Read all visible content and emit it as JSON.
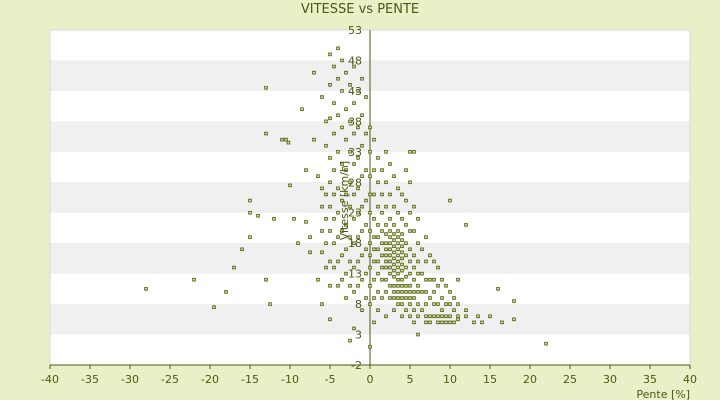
{
  "chart_data": {
    "type": "scatter",
    "title": "VITESSE vs PENTE",
    "xlabel": "Pente [%]",
    "ylabel": "Vitesse [km/h]",
    "xlim": [
      -40,
      40
    ],
    "ylim": [
      -2,
      53
    ],
    "x_ticks": [
      "-40",
      "-35",
      "-30",
      "-25",
      "-20",
      "-15",
      "-10",
      "-5",
      "0",
      "5",
      "10",
      "15",
      "20",
      "25",
      "30",
      "35",
      "40"
    ],
    "y_tick_labels": [
      "53",
      "48",
      "43",
      "38",
      "33",
      "28",
      "23",
      "18",
      "13",
      "8",
      "3",
      "-2"
    ],
    "y_tick_values": [
      53,
      48,
      43,
      38,
      33,
      28,
      23,
      18,
      13,
      8,
      3,
      -2
    ],
    "grid": "alternating horizontal bands",
    "points": [
      [
        -28,
        10.5
      ],
      [
        -22,
        12
      ],
      [
        -19.5,
        7.5
      ],
      [
        -18,
        10
      ],
      [
        -17,
        14
      ],
      [
        -16,
        17
      ],
      [
        -15,
        19
      ],
      [
        -15,
        23
      ],
      [
        -15,
        25
      ],
      [
        -14,
        22.5
      ],
      [
        -13,
        12
      ],
      [
        -13,
        36
      ],
      [
        -13,
        43.5
      ],
      [
        -12.5,
        8
      ],
      [
        -12,
        22
      ],
      [
        -11,
        35
      ],
      [
        -10.5,
        35
      ],
      [
        -10.2,
        34.5
      ],
      [
        -10,
        27.5
      ],
      [
        -9.5,
        22
      ],
      [
        -9,
        18
      ],
      [
        -8.5,
        40
      ],
      [
        -8,
        30
      ],
      [
        -8,
        21.5
      ],
      [
        -7.5,
        16.5
      ],
      [
        -7.5,
        19
      ],
      [
        -7,
        46
      ],
      [
        -7,
        35
      ],
      [
        -6.5,
        29
      ],
      [
        -6.5,
        12
      ],
      [
        -6,
        8
      ],
      [
        -6,
        42
      ],
      [
        -6,
        27
      ],
      [
        -6,
        24
      ],
      [
        -6,
        20
      ],
      [
        -6,
        16.5
      ],
      [
        -5.5,
        38
      ],
      [
        -5.5,
        34
      ],
      [
        -5.5,
        26
      ],
      [
        -5.5,
        22
      ],
      [
        -5.5,
        18
      ],
      [
        -5.5,
        14
      ],
      [
        -5,
        49
      ],
      [
        -5,
        44
      ],
      [
        -5,
        38.5
      ],
      [
        -5,
        32
      ],
      [
        -5,
        28
      ],
      [
        -5,
        24
      ],
      [
        -5,
        20
      ],
      [
        -5,
        15
      ],
      [
        -5,
        11
      ],
      [
        -5,
        5.5
      ],
      [
        -4.5,
        47
      ],
      [
        -4.5,
        41
      ],
      [
        -4.5,
        36
      ],
      [
        -4.5,
        30
      ],
      [
        -4.5,
        26
      ],
      [
        -4.5,
        22
      ],
      [
        -4.5,
        18
      ],
      [
        -4.5,
        14
      ],
      [
        -4,
        50
      ],
      [
        -4,
        45
      ],
      [
        -4,
        39
      ],
      [
        -4,
        33
      ],
      [
        -4,
        27
      ],
      [
        -4,
        23
      ],
      [
        -4,
        19
      ],
      [
        -4,
        15
      ],
      [
        -4,
        11
      ],
      [
        -3.5,
        48
      ],
      [
        -3.5,
        43
      ],
      [
        -3.5,
        37
      ],
      [
        -3.5,
        31
      ],
      [
        -3.5,
        25
      ],
      [
        -3.5,
        20
      ],
      [
        -3.5,
        16
      ],
      [
        -3.5,
        12
      ],
      [
        -3,
        46
      ],
      [
        -3,
        40
      ],
      [
        -3,
        35
      ],
      [
        -3,
        30
      ],
      [
        -3,
        26
      ],
      [
        -3,
        21
      ],
      [
        -3,
        17
      ],
      [
        -3,
        13
      ],
      [
        -3,
        9
      ],
      [
        -2.5,
        44
      ],
      [
        -2.5,
        38
      ],
      [
        -2.5,
        33
      ],
      [
        -2.5,
        28
      ],
      [
        -2.5,
        24
      ],
      [
        -2.5,
        19
      ],
      [
        -2.5,
        15
      ],
      [
        -2.5,
        11
      ],
      [
        -2.5,
        2
      ],
      [
        -2,
        47
      ],
      [
        -2,
        41
      ],
      [
        -2,
        36
      ],
      [
        -2,
        31
      ],
      [
        -2,
        26
      ],
      [
        -2,
        22
      ],
      [
        -2,
        18
      ],
      [
        -2,
        14
      ],
      [
        -2,
        10
      ],
      [
        -2,
        4
      ],
      [
        -1.5,
        43
      ],
      [
        -1.5,
        37
      ],
      [
        -1.5,
        32
      ],
      [
        -1.5,
        27
      ],
      [
        -1.5,
        23
      ],
      [
        -1.5,
        19
      ],
      [
        -1.5,
        15
      ],
      [
        -1.5,
        11
      ],
      [
        -1,
        45
      ],
      [
        -1,
        39
      ],
      [
        -1,
        34
      ],
      [
        -1,
        29
      ],
      [
        -1,
        24
      ],
      [
        -1,
        20
      ],
      [
        -1,
        16
      ],
      [
        -1,
        12
      ],
      [
        -1,
        7
      ],
      [
        -0.5,
        42
      ],
      [
        -0.5,
        36
      ],
      [
        -0.5,
        30
      ],
      [
        -0.5,
        25
      ],
      [
        -0.5,
        21
      ],
      [
        -0.5,
        17
      ],
      [
        -0.5,
        13
      ],
      [
        -0.5,
        9
      ],
      [
        0,
        37
      ],
      [
        0,
        33
      ],
      [
        0,
        29
      ],
      [
        0,
        26
      ],
      [
        0,
        23
      ],
      [
        0,
        20
      ],
      [
        0,
        18
      ],
      [
        0,
        16
      ],
      [
        0,
        14
      ],
      [
        0,
        11
      ],
      [
        0,
        8
      ],
      [
        0,
        1
      ],
      [
        0.5,
        35
      ],
      [
        0.5,
        30
      ],
      [
        0.5,
        26
      ],
      [
        0.5,
        22
      ],
      [
        0.5,
        19
      ],
      [
        0.5,
        17
      ],
      [
        0.5,
        15
      ],
      [
        0.5,
        12
      ],
      [
        0.5,
        9
      ],
      [
        0.5,
        5
      ],
      [
        1,
        32
      ],
      [
        1,
        28
      ],
      [
        1,
        24
      ],
      [
        1,
        21
      ],
      [
        1,
        19
      ],
      [
        1,
        17
      ],
      [
        1,
        15
      ],
      [
        1,
        13
      ],
      [
        1,
        10
      ],
      [
        1,
        7
      ],
      [
        1.5,
        30
      ],
      [
        1.5,
        26
      ],
      [
        1.5,
        23
      ],
      [
        1.5,
        20
      ],
      [
        1.5,
        18
      ],
      [
        1.5,
        16
      ],
      [
        1.5,
        14
      ],
      [
        1.5,
        12
      ],
      [
        1.5,
        9
      ],
      [
        2,
        33
      ],
      [
        2,
        28
      ],
      [
        2,
        24
      ],
      [
        2,
        21
      ],
      [
        2,
        19.5
      ],
      [
        2,
        18
      ],
      [
        2,
        17
      ],
      [
        2,
        16
      ],
      [
        2,
        15
      ],
      [
        2,
        14
      ],
      [
        2,
        12
      ],
      [
        2,
        10
      ],
      [
        2,
        6
      ],
      [
        2.5,
        31
      ],
      [
        2.5,
        26
      ],
      [
        2.5,
        22
      ],
      [
        2.5,
        20
      ],
      [
        2.5,
        19
      ],
      [
        2.5,
        18
      ],
      [
        2.5,
        17
      ],
      [
        2.5,
        16
      ],
      [
        2.5,
        15
      ],
      [
        2.5,
        14
      ],
      [
        2.5,
        13
      ],
      [
        2.5,
        11
      ],
      [
        2.5,
        9
      ],
      [
        3,
        29
      ],
      [
        3,
        24
      ],
      [
        3,
        21
      ],
      [
        3,
        19.5
      ],
      [
        3,
        18.5
      ],
      [
        3,
        17.5
      ],
      [
        3,
        16.5
      ],
      [
        3,
        15.5
      ],
      [
        3,
        14.5
      ],
      [
        3,
        13.5
      ],
      [
        3,
        12.5
      ],
      [
        3,
        11
      ],
      [
        3,
        10
      ],
      [
        3,
        9
      ],
      [
        3,
        7
      ],
      [
        3.5,
        27
      ],
      [
        3.5,
        23
      ],
      [
        3.5,
        20
      ],
      [
        3.5,
        19
      ],
      [
        3.5,
        18
      ],
      [
        3.5,
        17
      ],
      [
        3.5,
        16
      ],
      [
        3.5,
        15
      ],
      [
        3.5,
        14
      ],
      [
        3.5,
        13
      ],
      [
        3.5,
        12
      ],
      [
        3.5,
        11
      ],
      [
        3.5,
        10
      ],
      [
        3.5,
        9
      ],
      [
        3.5,
        8
      ],
      [
        4,
        26
      ],
      [
        4,
        22
      ],
      [
        4,
        19.5
      ],
      [
        4,
        18.5
      ],
      [
        4,
        17.5
      ],
      [
        4,
        16.5
      ],
      [
        4,
        15.5
      ],
      [
        4,
        14.5
      ],
      [
        4,
        13.5
      ],
      [
        4,
        12
      ],
      [
        4,
        11
      ],
      [
        4,
        10
      ],
      [
        4,
        9
      ],
      [
        4,
        8
      ],
      [
        4,
        6
      ],
      [
        4.5,
        30
      ],
      [
        4.5,
        25
      ],
      [
        4.5,
        21
      ],
      [
        4.5,
        18
      ],
      [
        4.5,
        16
      ],
      [
        4.5,
        14
      ],
      [
        4.5,
        12.5
      ],
      [
        4.5,
        11
      ],
      [
        4.5,
        10
      ],
      [
        4.5,
        9
      ],
      [
        4.5,
        7
      ],
      [
        5,
        33
      ],
      [
        5,
        28
      ],
      [
        5,
        23
      ],
      [
        5,
        20
      ],
      [
        5,
        17
      ],
      [
        5,
        15
      ],
      [
        5,
        13
      ],
      [
        5,
        11
      ],
      [
        5,
        10
      ],
      [
        5,
        9
      ],
      [
        5,
        8
      ],
      [
        5,
        6
      ],
      [
        5.5,
        33
      ],
      [
        5.5,
        24
      ],
      [
        5.5,
        20
      ],
      [
        5.5,
        16
      ],
      [
        5.5,
        14
      ],
      [
        5.5,
        12
      ],
      [
        5.5,
        10
      ],
      [
        5.5,
        9
      ],
      [
        5.5,
        7
      ],
      [
        5.5,
        5
      ],
      [
        6,
        22
      ],
      [
        6,
        18
      ],
      [
        6,
        15
      ],
      [
        6,
        13
      ],
      [
        6,
        11
      ],
      [
        6,
        10
      ],
      [
        6,
        8
      ],
      [
        6,
        6
      ],
      [
        6,
        3
      ],
      [
        6.5,
        17
      ],
      [
        6.5,
        13
      ],
      [
        6.5,
        10
      ],
      [
        6.5,
        7
      ],
      [
        7,
        19
      ],
      [
        7,
        15
      ],
      [
        7,
        12
      ],
      [
        7,
        10
      ],
      [
        7,
        8
      ],
      [
        7,
        6
      ],
      [
        7,
        5
      ],
      [
        7.5,
        16
      ],
      [
        7.5,
        12
      ],
      [
        7.5,
        9
      ],
      [
        7.5,
        6
      ],
      [
        7.5,
        5
      ],
      [
        8,
        15
      ],
      [
        8,
        12
      ],
      [
        8,
        10
      ],
      [
        8,
        8
      ],
      [
        8,
        6
      ],
      [
        8.5,
        14
      ],
      [
        8.5,
        11
      ],
      [
        8.5,
        8
      ],
      [
        8.5,
        6
      ],
      [
        8.5,
        5
      ],
      [
        9,
        12
      ],
      [
        9,
        9
      ],
      [
        9,
        7
      ],
      [
        9,
        6
      ],
      [
        9,
        5
      ],
      [
        9.5,
        11
      ],
      [
        9.5,
        8
      ],
      [
        9.5,
        6
      ],
      [
        9.5,
        5
      ],
      [
        10,
        25
      ],
      [
        10,
        10
      ],
      [
        10,
        8
      ],
      [
        10,
        6
      ],
      [
        10,
        5
      ],
      [
        10.5,
        9
      ],
      [
        10.5,
        7
      ],
      [
        10.5,
        5
      ],
      [
        11,
        12
      ],
      [
        11,
        8
      ],
      [
        11,
        6
      ],
      [
        11,
        5.5
      ],
      [
        12,
        21
      ],
      [
        12,
        7
      ],
      [
        12,
        6
      ],
      [
        13,
        5
      ],
      [
        13.5,
        6
      ],
      [
        14,
        5
      ],
      [
        15,
        6
      ],
      [
        16,
        10.5
      ],
      [
        16.5,
        5
      ],
      [
        18,
        5.5
      ],
      [
        18,
        8.5
      ],
      [
        22,
        1.5
      ]
    ]
  }
}
